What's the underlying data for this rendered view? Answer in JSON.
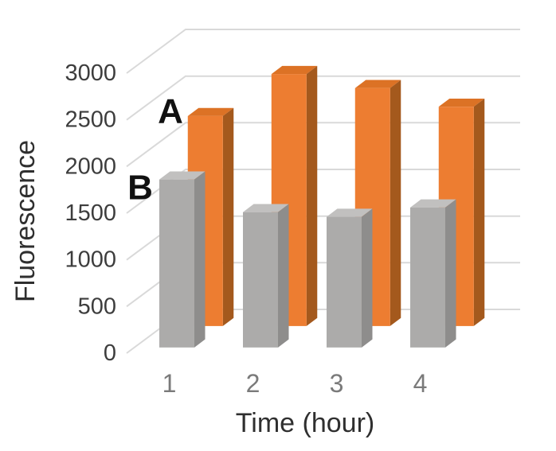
{
  "chart_data": {
    "type": "bar",
    "subtype": "3d-column",
    "title": "",
    "xlabel": "Time (hour)",
    "ylabel": "Fluorescence",
    "categories": [
      "1",
      "2",
      "3",
      "4"
    ],
    "series": [
      {
        "name": "A",
        "row": "back",
        "color": "#ED7D31",
        "faces": {
          "front": "#ED7D31",
          "side": "#A4591D",
          "top": "#DC7225"
        },
        "values": [
          2250,
          2700,
          2550,
          2350
        ]
      },
      {
        "name": "B",
        "row": "front",
        "color": "#ACABAA",
        "faces": {
          "front": "#ACABAA",
          "side": "#8E8D8C",
          "top": "#C1C0BF"
        },
        "values": [
          1800,
          1450,
          1400,
          1500
        ]
      }
    ],
    "ylim": [
      0,
      3000
    ],
    "yticks": [
      0,
      500,
      1000,
      1500,
      2000,
      2500,
      3000
    ],
    "ytick_labels": [
      "0",
      "500",
      "1000",
      "1500",
      "2000",
      "2500",
      "3000"
    ],
    "grid": true,
    "legend_position": "series letters inside plot beside first bars"
  },
  "colors": {
    "background": "#FFFFFF",
    "gridline": "#D9D9D9",
    "tick_label": "#3D3D3D",
    "category_label": "#7A7A7A",
    "axis_title": "#2F2F2F",
    "series_letter": "#111111"
  }
}
